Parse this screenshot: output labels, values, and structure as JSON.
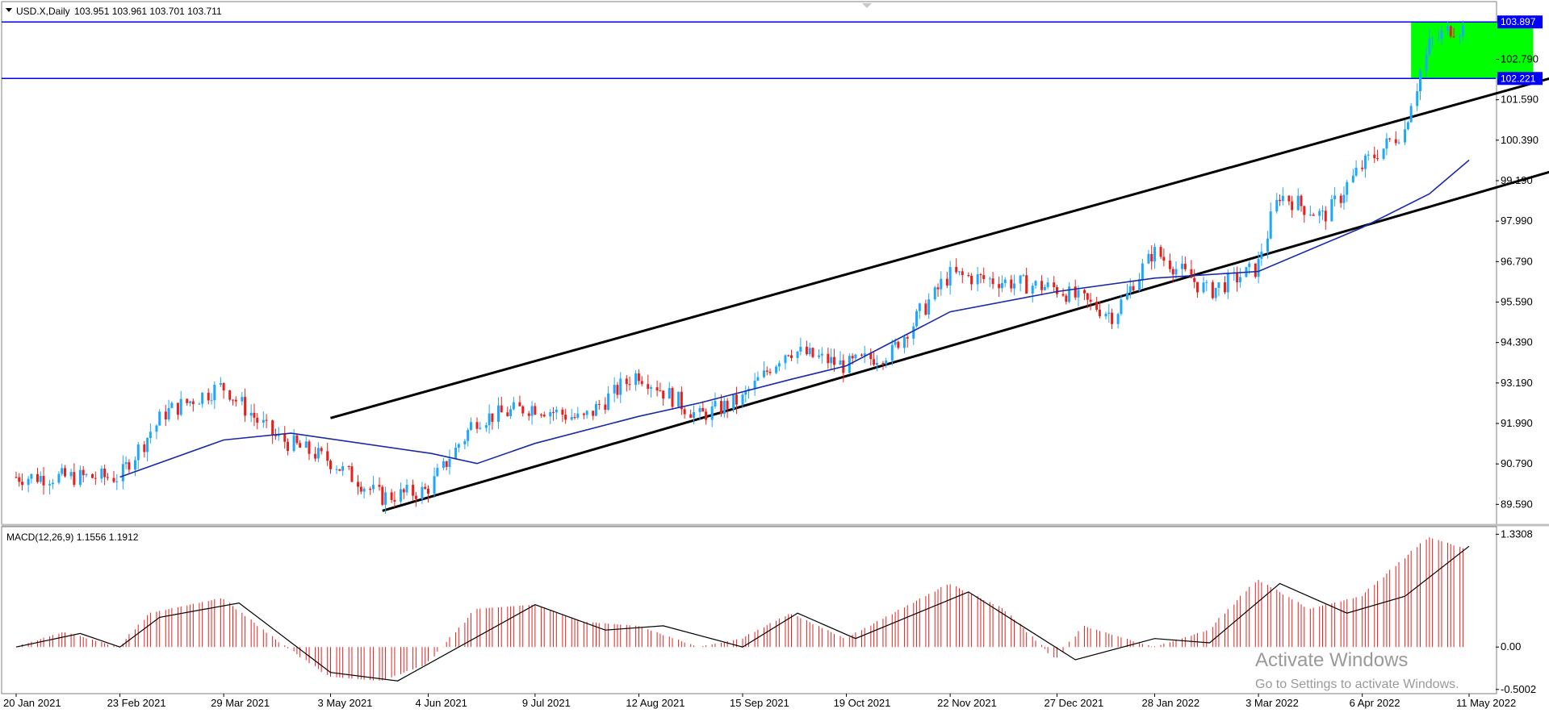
{
  "header": {
    "symbol": "USD.X,Daily",
    "ohlc": "103.951 103.961 103.701 103.711",
    "macd_label": "MACD(12,26,9) 1.1556 1.1912"
  },
  "watermark": {
    "line1": "Activate Windows",
    "line2": "Go to Settings to activate Windows."
  },
  "colors": {
    "bull": "#1ea7ff",
    "bear": "#e8201c",
    "ma": "#1a2aa6",
    "level": "#0000ff",
    "zone": "#00ff00",
    "trend": "#000000",
    "macd_hist": "#e8201c",
    "macd_signal": "#000000",
    "price_tag_bg": "#0000ff"
  },
  "chart_data": [
    {
      "type": "candlestick",
      "title": "USD.X,Daily",
      "ylim": [
        89.0,
        104.5
      ],
      "y_ticks": [
        "103.897",
        "102.790",
        "101.590",
        "100.390",
        "99.190",
        "97.990",
        "96.790",
        "95.590",
        "94.390",
        "93.190",
        "91.990",
        "90.790",
        "89.590"
      ],
      "x_ticks": [
        "20 Jan 2021",
        "23 Feb 2021",
        "29 Mar 2021",
        "3 May 2021",
        "4 Jun 2021",
        "9 Jul 2021",
        "12 Aug 2021",
        "15 Sep 2021",
        "19 Oct 2021",
        "22 Nov 2021",
        "27 Dec 2021",
        "28 Jan 2022",
        "3 Mar 2022",
        "6 Apr 2022",
        "11 May 2022"
      ],
      "close_path": [
        {
          "x": "20 Jan 2021",
          "y": 90.4
        },
        {
          "x": "23 Feb 2021",
          "y": 90.4
        },
        {
          "x": "10 Mar 2021",
          "y": 92.3
        },
        {
          "x": "29 Mar 2021",
          "y": 93.1
        },
        {
          "x": "15 Apr 2021",
          "y": 91.6
        },
        {
          "x": "3 May 2021",
          "y": 90.9
        },
        {
          "x": "20 May 2021",
          "y": 89.8
        },
        {
          "x": "4 Jun 2021",
          "y": 90.0
        },
        {
          "x": "20 Jun 2021",
          "y": 92.1
        },
        {
          "x": "9 Jul 2021",
          "y": 92.5
        },
        {
          "x": "25 Jul 2021",
          "y": 92.1
        },
        {
          "x": "12 Aug 2021",
          "y": 93.5
        },
        {
          "x": "1 Sep 2021",
          "y": 92.2
        },
        {
          "x": "15 Sep 2021",
          "y": 92.7
        },
        {
          "x": "30 Sep 2021",
          "y": 94.2
        },
        {
          "x": "19 Oct 2021",
          "y": 93.7
        },
        {
          "x": "3 Nov 2021",
          "y": 94.1
        },
        {
          "x": "22 Nov 2021",
          "y": 96.4
        },
        {
          "x": "10 Dec 2021",
          "y": 96.2
        },
        {
          "x": "27 Dec 2021",
          "y": 96.0
        },
        {
          "x": "15 Jan 2022",
          "y": 95.2
        },
        {
          "x": "28 Jan 2022",
          "y": 97.1
        },
        {
          "x": "15 Feb 2022",
          "y": 95.9
        },
        {
          "x": "3 Mar 2022",
          "y": 96.6
        },
        {
          "x": "10 Mar 2022",
          "y": 98.8
        },
        {
          "x": "25 Mar 2022",
          "y": 98.1
        },
        {
          "x": "6 Apr 2022",
          "y": 99.6
        },
        {
          "x": "20 Apr 2022",
          "y": 100.7
        },
        {
          "x": "28 Apr 2022",
          "y": 103.2
        },
        {
          "x": "5 May 2022",
          "y": 103.7
        },
        {
          "x": "11 May 2022",
          "y": 103.71
        }
      ],
      "moving_average": [
        {
          "x": "23 Feb 2021",
          "y": 90.4
        },
        {
          "x": "29 Mar 2021",
          "y": 91.5
        },
        {
          "x": "20 Apr 2021",
          "y": 91.7
        },
        {
          "x": "5 Jun 2021",
          "y": 91.1
        },
        {
          "x": "20 Jun 2021",
          "y": 90.8
        },
        {
          "x": "9 Jul 2021",
          "y": 91.4
        },
        {
          "x": "12 Aug 2021",
          "y": 92.2
        },
        {
          "x": "1 Sep 2021",
          "y": 92.6
        },
        {
          "x": "1 Oct 2021",
          "y": 93.3
        },
        {
          "x": "19 Oct 2021",
          "y": 93.7
        },
        {
          "x": "22 Nov 2021",
          "y": 95.3
        },
        {
          "x": "27 Dec 2021",
          "y": 95.9
        },
        {
          "x": "28 Jan 2022",
          "y": 96.3
        },
        {
          "x": "3 Mar 2022",
          "y": 96.5
        },
        {
          "x": "6 Apr 2022",
          "y": 97.8
        },
        {
          "x": "28 Apr 2022",
          "y": 98.8
        },
        {
          "x": "11 May 2022",
          "y": 99.8
        }
      ],
      "levels": [
        {
          "label": "103.897",
          "y": 103.897
        },
        {
          "label": "102.221",
          "y": 102.221
        }
      ],
      "zone": {
        "x": [
          "22 Apr 2022",
          "1 Jun 2022"
        ],
        "y": [
          102.221,
          103.897
        ]
      },
      "trend_lines": [
        {
          "from": {
            "x": "3 May 2021",
            "y": 92.15
          },
          "to": {
            "x": "12 Aug 2022",
            "y": 103.9
          }
        },
        {
          "from": {
            "x": "20 May 2021",
            "y": 89.4
          },
          "to": {
            "x": "12 Aug 2022",
            "y": 101.2
          }
        }
      ]
    },
    {
      "type": "bar",
      "title": "MACD(12,26,9)",
      "ylim": [
        -0.55,
        1.42
      ],
      "y_ticks": [
        "1.3308",
        "0.00",
        "-0.5002"
      ],
      "macd_hist": [
        {
          "x": "20 Jan 2021",
          "y": 0.0
        },
        {
          "x": "5 Feb 2021",
          "y": 0.18
        },
        {
          "x": "23 Feb 2021",
          "y": 0.0
        },
        {
          "x": "5 Mar 2021",
          "y": 0.4
        },
        {
          "x": "29 Mar 2021",
          "y": 0.58
        },
        {
          "x": "15 Apr 2021",
          "y": 0.1
        },
        {
          "x": "3 May 2021",
          "y": -0.35
        },
        {
          "x": "20 May 2021",
          "y": -0.4
        },
        {
          "x": "4 Jun 2021",
          "y": -0.2
        },
        {
          "x": "20 Jun 2021",
          "y": 0.45
        },
        {
          "x": "9 Jul 2021",
          "y": 0.5
        },
        {
          "x": "25 Jul 2021",
          "y": 0.3
        },
        {
          "x": "12 Aug 2021",
          "y": 0.25
        },
        {
          "x": "1 Sep 2021",
          "y": 0.0
        },
        {
          "x": "15 Sep 2021",
          "y": 0.1
        },
        {
          "x": "1 Oct 2021",
          "y": 0.4
        },
        {
          "x": "19 Oct 2021",
          "y": 0.1
        },
        {
          "x": "22 Nov 2021",
          "y": 0.75
        },
        {
          "x": "10 Dec 2021",
          "y": 0.45
        },
        {
          "x": "27 Dec 2021",
          "y": -0.15
        },
        {
          "x": "5 Jan 2022",
          "y": 0.25
        },
        {
          "x": "28 Jan 2022",
          "y": 0.0
        },
        {
          "x": "15 Feb 2022",
          "y": 0.2
        },
        {
          "x": "3 Mar 2022",
          "y": 0.8
        },
        {
          "x": "20 Mar 2022",
          "y": 0.45
        },
        {
          "x": "6 Apr 2022",
          "y": 0.6
        },
        {
          "x": "28 Apr 2022",
          "y": 1.3
        },
        {
          "x": "11 May 2022",
          "y": 1.15
        }
      ],
      "macd_signal": [
        {
          "x": "20 Jan 2021",
          "y": 0.0
        },
        {
          "x": "10 Feb 2021",
          "y": 0.16
        },
        {
          "x": "23 Feb 2021",
          "y": 0.0
        },
        {
          "x": "8 Mar 2021",
          "y": 0.35
        },
        {
          "x": "3 Apr 2021",
          "y": 0.52
        },
        {
          "x": "3 May 2021",
          "y": -0.3
        },
        {
          "x": "25 May 2021",
          "y": -0.4
        },
        {
          "x": "9 Jul 2021",
          "y": 0.5
        },
        {
          "x": "1 Aug 2021",
          "y": 0.2
        },
        {
          "x": "20 Aug 2021",
          "y": 0.25
        },
        {
          "x": "15 Sep 2021",
          "y": 0.0
        },
        {
          "x": "3 Oct 2021",
          "y": 0.4
        },
        {
          "x": "22 Oct 2021",
          "y": 0.1
        },
        {
          "x": "28 Nov 2021",
          "y": 0.65
        },
        {
          "x": "2 Jan 2022",
          "y": -0.15
        },
        {
          "x": "28 Jan 2022",
          "y": 0.1
        },
        {
          "x": "15 Feb 2022",
          "y": 0.05
        },
        {
          "x": "10 Mar 2022",
          "y": 0.75
        },
        {
          "x": "1 Apr 2022",
          "y": 0.4
        },
        {
          "x": "20 Apr 2022",
          "y": 0.6
        },
        {
          "x": "11 May 2022",
          "y": 1.19
        }
      ]
    }
  ]
}
